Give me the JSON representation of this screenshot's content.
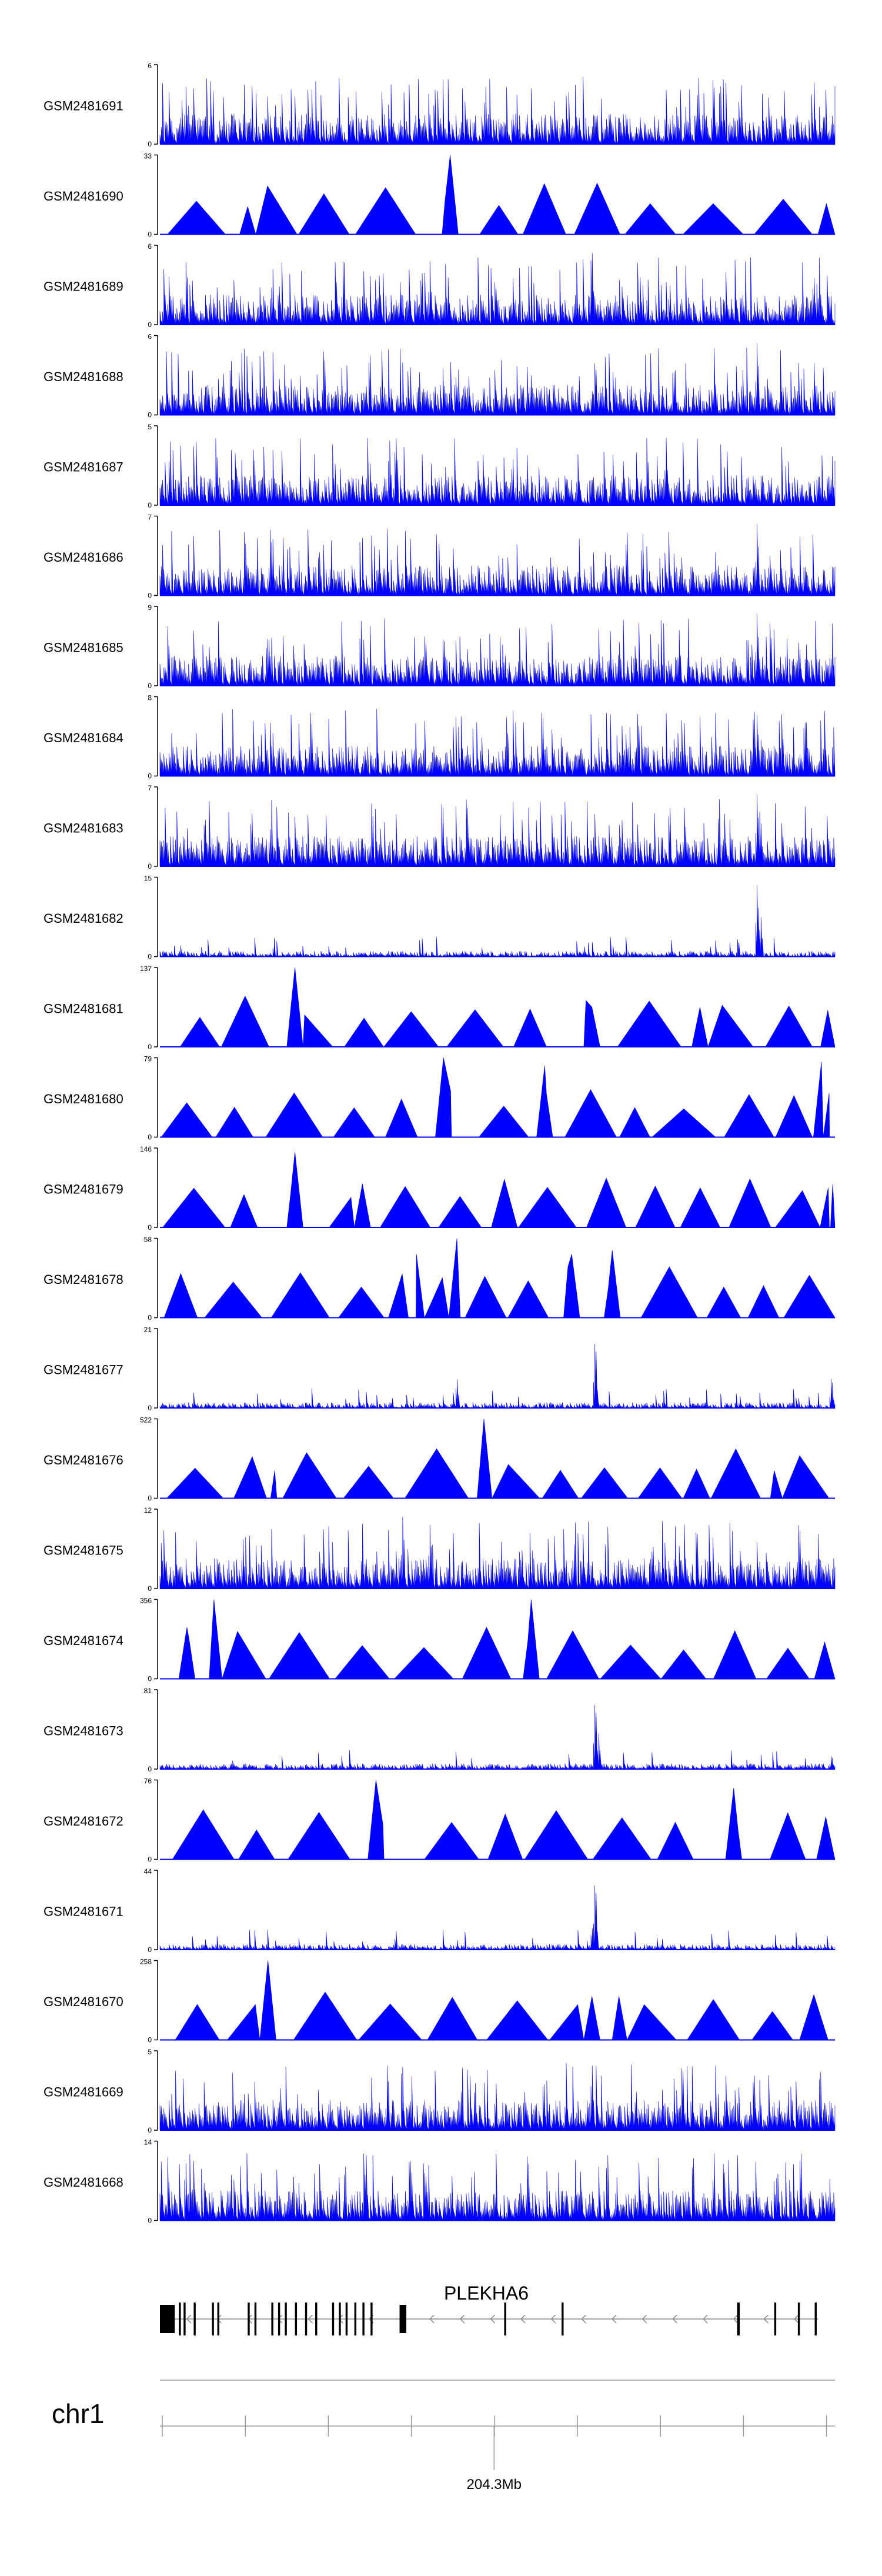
{
  "chart_data": {
    "type": "area",
    "title": "",
    "colors": {
      "signal": "#0000ff",
      "axis": "#000000",
      "gene": "#000000",
      "intron": "#888888"
    },
    "tracks": [
      {
        "name": "GSM2481691",
        "ymax": 6,
        "ymax_label": "6",
        "ymin_label": "0",
        "pattern": "dense",
        "peaks": [
          [
            0.82,
            1.0
          ],
          [
            0.83,
            0.9
          ],
          [
            0.05,
            0.7
          ]
        ]
      },
      {
        "name": "GSM2481690",
        "ymax": 33,
        "ymax_label": "33",
        "ymin_label": "0",
        "pattern": "triangles",
        "peaks": [
          [
            0.43,
            1.0
          ],
          [
            0.13,
            0.35
          ]
        ]
      },
      {
        "name": "GSM2481689",
        "ymax": 6,
        "ymax_label": "6",
        "ymin_label": "0",
        "pattern": "dense",
        "peaks": [
          [
            0.64,
            1.0
          ],
          [
            0.4,
            0.8
          ]
        ]
      },
      {
        "name": "GSM2481688",
        "ymax": 6,
        "ymax_label": "6",
        "ymin_label": "0",
        "pattern": "dense",
        "peaks": [
          [
            0.885,
            1.0
          ],
          [
            0.645,
            0.8
          ],
          [
            0.66,
            0.55
          ]
        ]
      },
      {
        "name": "GSM2481687",
        "ymax": 5,
        "ymax_label": "5",
        "ymin_label": "0",
        "pattern": "dense",
        "peaks": [
          [
            0.34,
            0.9
          ],
          [
            0.75,
            0.85
          ]
        ]
      },
      {
        "name": "GSM2481686",
        "ymax": 7,
        "ymax_label": "7",
        "ymin_label": "0",
        "pattern": "dense",
        "peaks": [
          [
            0.885,
            1.0
          ],
          [
            0.66,
            0.6
          ]
        ]
      },
      {
        "name": "GSM2481685",
        "ymax": 9,
        "ymax_label": "9",
        "ymin_label": "0",
        "pattern": "dense",
        "peaks": [
          [
            0.885,
            1.0
          ],
          [
            0.68,
            0.55
          ]
        ]
      },
      {
        "name": "GSM2481684",
        "ymax": 8,
        "ymax_label": "8",
        "ymin_label": "0",
        "pattern": "dense",
        "peaks": [
          [
            0.88,
            1.0
          ],
          [
            0.885,
            0.85
          ],
          [
            0.89,
            0.5
          ]
        ]
      },
      {
        "name": "GSM2481683",
        "ymax": 7,
        "ymax_label": "7",
        "ymin_label": "0",
        "pattern": "dense",
        "peaks": [
          [
            0.885,
            1.0
          ],
          [
            0.89,
            0.6
          ]
        ]
      },
      {
        "name": "GSM2481682",
        "ymax": 15,
        "ymax_label": "15",
        "ymin_label": "0",
        "pattern": "sparse",
        "peaks": [
          [
            0.885,
            1.0
          ],
          [
            0.89,
            0.55
          ]
        ]
      },
      {
        "name": "GSM2481681",
        "ymax": 137,
        "ymax_label": "137",
        "ymin_label": "0",
        "pattern": "triangles",
        "peaks": [
          [
            0.2,
            1.0
          ],
          [
            0.64,
            0.5
          ],
          [
            0.8,
            0.5
          ]
        ]
      },
      {
        "name": "GSM2481680",
        "ymax": 79,
        "ymax_label": "79",
        "ymin_label": "0",
        "pattern": "triangles",
        "peaks": [
          [
            0.42,
            1.0
          ],
          [
            0.57,
            0.9
          ],
          [
            0.98,
            0.95
          ]
        ]
      },
      {
        "name": "GSM2481679",
        "ymax": 146,
        "ymax_label": "146",
        "ymin_label": "0",
        "pattern": "triangles",
        "peaks": [
          [
            0.2,
            0.95
          ],
          [
            0.3,
            0.55
          ],
          [
            0.99,
            0.5
          ]
        ]
      },
      {
        "name": "GSM2481678",
        "ymax": 58,
        "ymax_label": "58",
        "ymin_label": "0",
        "pattern": "triangles",
        "peaks": [
          [
            0.44,
            1.0
          ],
          [
            0.38,
            0.8
          ],
          [
            0.67,
            0.85
          ],
          [
            0.61,
            0.8
          ]
        ]
      },
      {
        "name": "GSM2481677",
        "ymax": 21,
        "ymax_label": "21",
        "ymin_label": "0",
        "pattern": "sparse",
        "peaks": [
          [
            0.645,
            1.0
          ],
          [
            0.44,
            0.4
          ],
          [
            0.995,
            0.45
          ]
        ]
      },
      {
        "name": "GSM2481676",
        "ymax": 522,
        "ymax_label": "522",
        "ymin_label": "0",
        "pattern": "triangles",
        "peaks": [
          [
            0.48,
            1.0
          ],
          [
            0.17,
            0.35
          ],
          [
            0.91,
            0.35
          ]
        ]
      },
      {
        "name": "GSM2481675",
        "ymax": 12,
        "ymax_label": "12",
        "ymin_label": "0",
        "pattern": "dense",
        "peaks": [
          [
            0.36,
            1.0
          ],
          [
            0.4,
            0.8
          ],
          [
            0.73,
            0.65
          ]
        ]
      },
      {
        "name": "GSM2481674",
        "ymax": 356,
        "ymax_label": "356",
        "ymin_label": "0",
        "pattern": "triangles",
        "peaks": [
          [
            0.55,
            1.0
          ],
          [
            0.08,
            1.0
          ],
          [
            0.04,
            0.65
          ]
        ]
      },
      {
        "name": "GSM2481673",
        "ymax": 81,
        "ymax_label": "81",
        "ymin_label": "0",
        "pattern": "sparse",
        "peaks": [
          [
            0.645,
            1.0
          ],
          [
            0.65,
            0.45
          ],
          [
            0.995,
            0.2
          ]
        ]
      },
      {
        "name": "GSM2481672",
        "ymax": 76,
        "ymax_label": "76",
        "ymin_label": "0",
        "pattern": "triangles",
        "peaks": [
          [
            0.32,
            1.0
          ],
          [
            0.85,
            0.9
          ]
        ]
      },
      {
        "name": "GSM2481671",
        "ymax": 44,
        "ymax_label": "44",
        "ymin_label": "0",
        "pattern": "sparse",
        "peaks": [
          [
            0.645,
            1.0
          ],
          [
            0.64,
            0.3
          ]
        ]
      },
      {
        "name": "GSM2481670",
        "ymax": 258,
        "ymax_label": "258",
        "ymin_label": "0",
        "pattern": "triangles",
        "peaks": [
          [
            0.16,
            1.0
          ],
          [
            0.64,
            0.55
          ],
          [
            0.68,
            0.55
          ]
        ]
      },
      {
        "name": "GSM2481669",
        "ymax": 5,
        "ymax_label": "5",
        "ymin_label": "0",
        "pattern": "dense",
        "peaks": [
          [
            0.64,
            0.9
          ],
          [
            0.88,
            0.85
          ]
        ]
      },
      {
        "name": "GSM2481668",
        "ymax": 14,
        "ymax_label": "14",
        "ymin_label": "0",
        "pattern": "dense",
        "peaks": [
          [
            0.545,
            1.0
          ],
          [
            0.05,
            0.75
          ],
          [
            0.15,
            0.6
          ]
        ]
      }
    ],
    "gene": {
      "name": "PLEKHA6",
      "strand": "-",
      "exons": [
        {
          "pos": 0.0,
          "w": 0.022,
          "type": "utr"
        },
        {
          "pos": 0.028,
          "w": 0.003,
          "type": "cds"
        },
        {
          "pos": 0.035,
          "w": 0.003,
          "type": "cds"
        },
        {
          "pos": 0.05,
          "w": 0.003,
          "type": "cds"
        },
        {
          "pos": 0.077,
          "w": 0.003,
          "type": "cds"
        },
        {
          "pos": 0.085,
          "w": 0.003,
          "type": "cds"
        },
        {
          "pos": 0.13,
          "w": 0.003,
          "type": "cds"
        },
        {
          "pos": 0.14,
          "w": 0.003,
          "type": "cds"
        },
        {
          "pos": 0.165,
          "w": 0.003,
          "type": "cds"
        },
        {
          "pos": 0.175,
          "w": 0.003,
          "type": "cds"
        },
        {
          "pos": 0.185,
          "w": 0.003,
          "type": "cds"
        },
        {
          "pos": 0.2,
          "w": 0.003,
          "type": "cds"
        },
        {
          "pos": 0.215,
          "w": 0.003,
          "type": "cds"
        },
        {
          "pos": 0.23,
          "w": 0.003,
          "type": "cds"
        },
        {
          "pos": 0.255,
          "w": 0.003,
          "type": "cds"
        },
        {
          "pos": 0.265,
          "w": 0.003,
          "type": "cds"
        },
        {
          "pos": 0.275,
          "w": 0.003,
          "type": "cds"
        },
        {
          "pos": 0.288,
          "w": 0.003,
          "type": "cds"
        },
        {
          "pos": 0.3,
          "w": 0.003,
          "type": "cds"
        },
        {
          "pos": 0.312,
          "w": 0.003,
          "type": "cds"
        },
        {
          "pos": 0.355,
          "w": 0.01,
          "type": "utr"
        },
        {
          "pos": 0.51,
          "w": 0.003,
          "type": "cds"
        },
        {
          "pos": 0.595,
          "w": 0.003,
          "type": "cds"
        },
        {
          "pos": 0.855,
          "w": 0.004,
          "type": "cds"
        },
        {
          "pos": 0.91,
          "w": 0.003,
          "type": "cds"
        },
        {
          "pos": 0.945,
          "w": 0.003,
          "type": "cds"
        },
        {
          "pos": 0.97,
          "w": 0.003,
          "type": "cds"
        }
      ]
    },
    "axis": {
      "chromosome": "chr1",
      "tick_label": "204.3Mb",
      "major_tick": 0.495,
      "minor_ticks": [
        0.0,
        0.123,
        0.246,
        0.369,
        0.492,
        0.615,
        0.738,
        0.861,
        0.984
      ]
    }
  }
}
